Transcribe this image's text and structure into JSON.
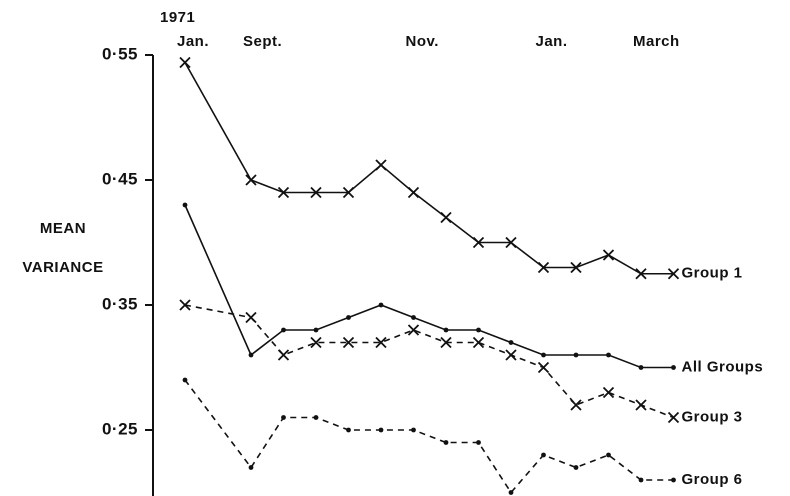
{
  "chart_data": {
    "type": "line",
    "annotation": "1971",
    "ylabel_lines": [
      "MEAN",
      "VARIANCE"
    ],
    "categories": [
      "Jan.",
      "Sept.",
      null,
      null,
      null,
      null,
      "Nov.",
      null,
      null,
      null,
      "Jan.",
      null,
      null,
      "March",
      null
    ],
    "ylim": [
      0.2,
      0.55
    ],
    "yticks": [
      {
        "value": 0.55,
        "label": "0·55"
      },
      {
        "value": 0.45,
        "label": "0·45"
      },
      {
        "value": 0.35,
        "label": "0·35"
      },
      {
        "value": 0.25,
        "label": "0·25"
      }
    ],
    "series": [
      {
        "name": "Group 1",
        "color": "#111111",
        "marker": "x",
        "dashed": false,
        "values": [
          0.544,
          0.45,
          0.44,
          0.44,
          0.44,
          0.462,
          0.44,
          0.42,
          0.4,
          0.4,
          0.38,
          0.38,
          0.39,
          0.375,
          0.375
        ]
      },
      {
        "name": "All Groups",
        "color": "#111111",
        "marker": "dot",
        "dashed": false,
        "values": [
          0.43,
          0.31,
          0.33,
          0.33,
          0.34,
          0.35,
          0.34,
          0.33,
          0.33,
          0.32,
          0.31,
          0.31,
          0.31,
          0.3,
          0.3
        ]
      },
      {
        "name": "Group 3",
        "color": "#111111",
        "marker": "x",
        "dashed": true,
        "values": [
          0.35,
          0.34,
          0.31,
          0.32,
          0.32,
          0.32,
          0.33,
          0.32,
          0.32,
          0.31,
          0.3,
          0.27,
          0.28,
          0.27,
          0.26
        ]
      },
      {
        "name": "Group 6",
        "color": "#111111",
        "marker": "dot",
        "dashed": true,
        "values": [
          0.29,
          0.22,
          0.26,
          0.26,
          0.25,
          0.25,
          0.25,
          0.24,
          0.24,
          0.2,
          0.23,
          0.22,
          0.23,
          0.21,
          0.21
        ]
      }
    ]
  }
}
